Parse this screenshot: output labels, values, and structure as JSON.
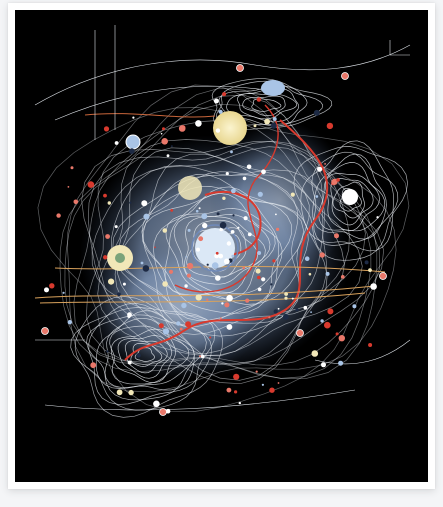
{
  "image": {
    "subject": "abstract-generative-artwork",
    "palette": {
      "background": "#000000",
      "frame": "#ffffff",
      "mat": "#f4f5f7",
      "line_primary": "#e9edf2",
      "line_accent_red": "#d83a2e",
      "line_accent_orange": "#d9a25c",
      "blob_blue": "#a9c4e6",
      "blob_cream": "#f1e7b8",
      "blob_coral": "#e9786a"
    }
  }
}
